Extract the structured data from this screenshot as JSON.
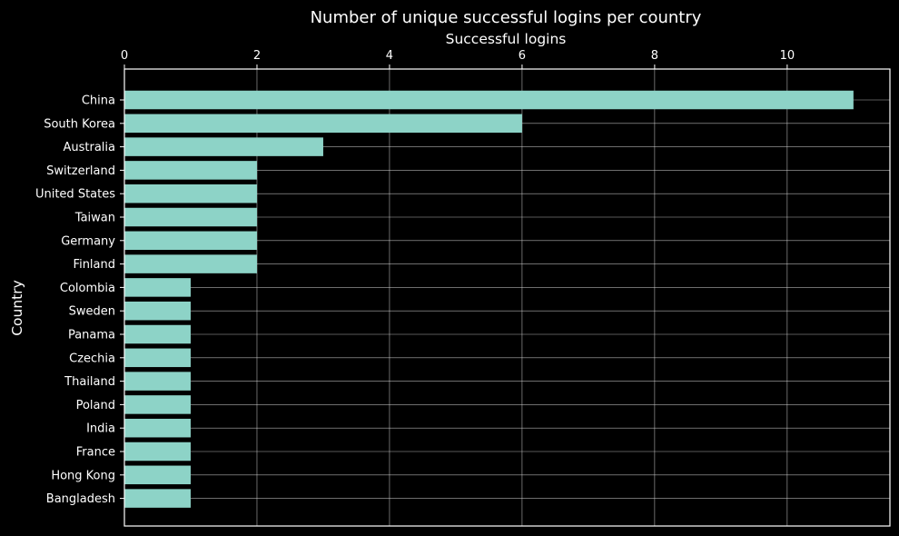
{
  "chart_data": {
    "type": "bar",
    "orientation": "horizontal",
    "title": "Number of unique successful logins per country",
    "xlabel": "Successful logins",
    "ylabel": "Country",
    "xaxis_position": "top",
    "xlim": [
      0,
      11.55
    ],
    "xticks": [
      0,
      2,
      4,
      6,
      8,
      10
    ],
    "grid": true,
    "categories": [
      "China",
      "South Korea",
      "Australia",
      "Switzerland",
      "United States",
      "Taiwan",
      "Germany",
      "Finland",
      "Colombia",
      "Sweden",
      "Panama",
      "Czechia",
      "Thailand",
      "Poland",
      "India",
      "France",
      "Hong Kong",
      "Bangladesh"
    ],
    "values": [
      11,
      6,
      3,
      2,
      2,
      2,
      2,
      2,
      1,
      1,
      1,
      1,
      1,
      1,
      1,
      1,
      1,
      1
    ],
    "colors": {
      "background": "#000000",
      "bar": "#8dd3c7",
      "text": "#ffffff",
      "grid": "#d0d0d0",
      "axes": "#ffffff"
    }
  }
}
